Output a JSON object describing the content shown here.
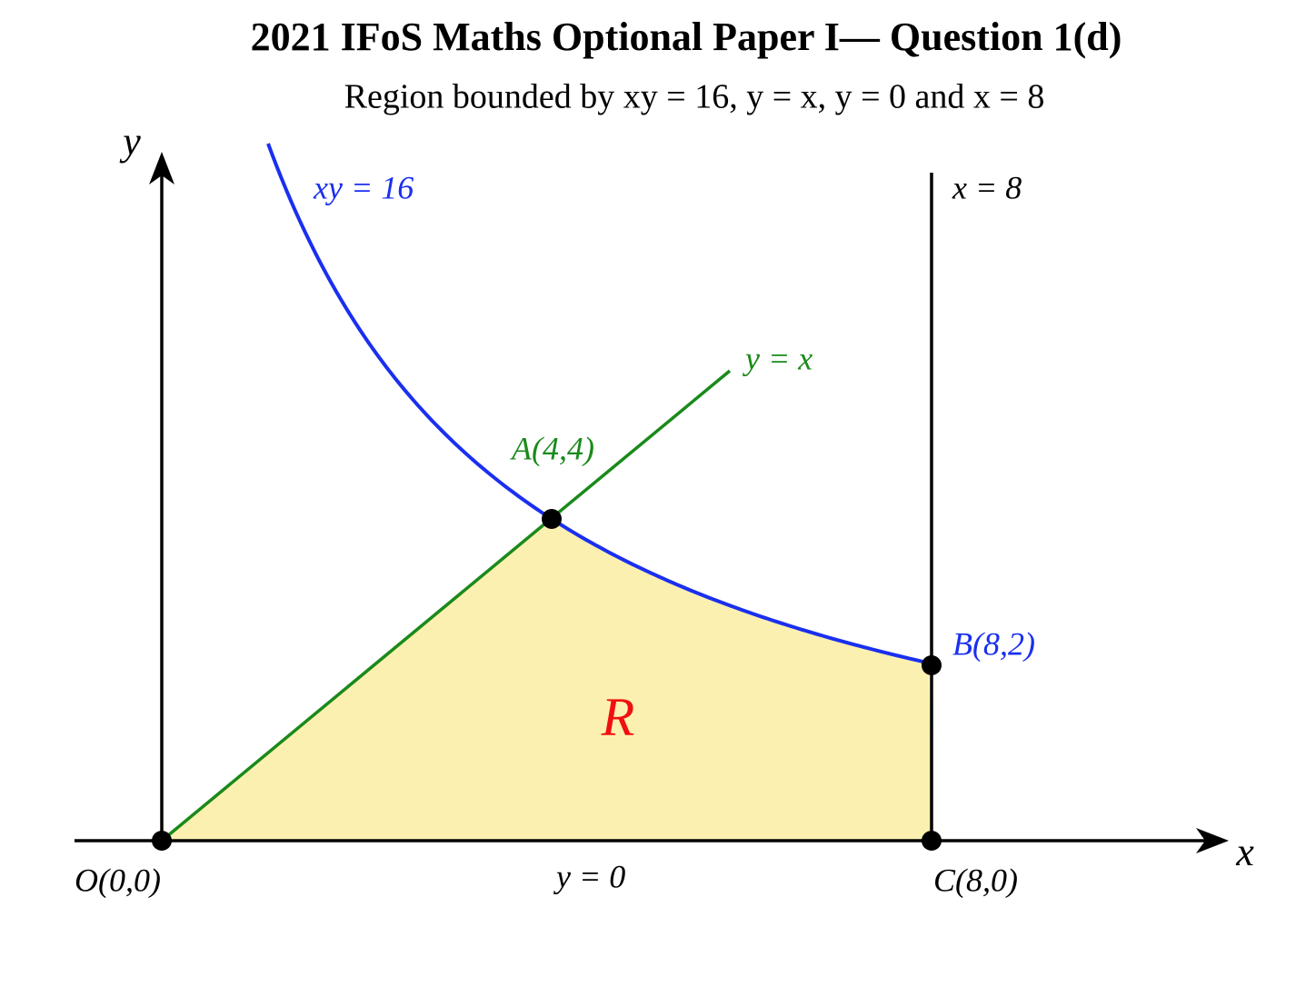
{
  "header": {
    "title": "2021 IFoS Maths Optional Paper I— Question 1(d)",
    "subtitle": "Region bounded by xy = 16, y = x, y = 0 and x = 8"
  },
  "axes": {
    "x_label": "x",
    "y_label": "y"
  },
  "curves": {
    "hyperbola": "xy = 16",
    "line": "y = x",
    "vertical": "x = 8",
    "base": "y = 0"
  },
  "points": {
    "A": "A(4,4)",
    "B": "B(8,2)",
    "C": "C(8,0)",
    "O": "O(0,0)"
  },
  "region": "R"
}
